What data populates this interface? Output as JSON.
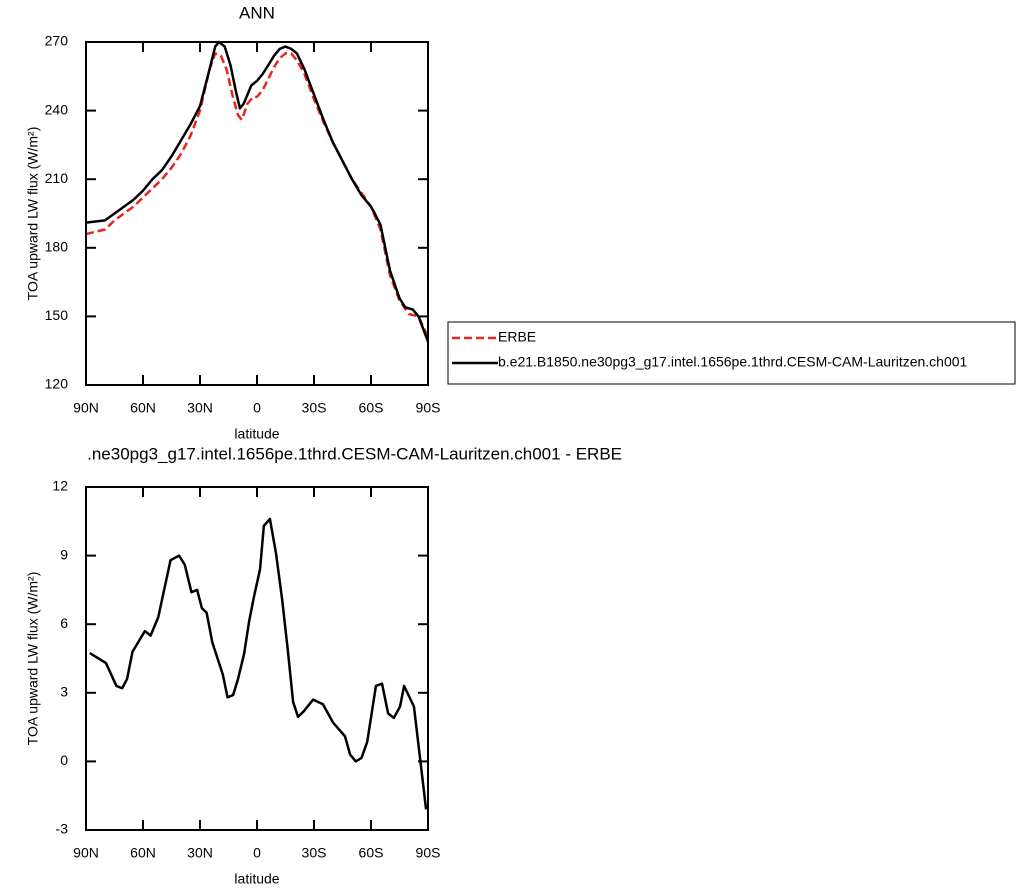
{
  "chart_data": [
    {
      "type": "line",
      "title": "ANN",
      "xlabel": "latitude",
      "ylabel": "TOA upward LW flux (W/m²)",
      "xlim": [
        90,
        -90
      ],
      "ylim": [
        120,
        270
      ],
      "xticks": [
        {
          "value": 90,
          "label": "90N"
        },
        {
          "value": 60,
          "label": "60N"
        },
        {
          "value": 30,
          "label": "30N"
        },
        0,
        {
          "value": -30,
          "label": "30S"
        },
        {
          "value": -60,
          "label": "60S"
        },
        {
          "value": -90,
          "label": "90S"
        }
      ],
      "yticks": [
        120,
        150,
        180,
        210,
        240,
        270
      ],
      "legend": "right",
      "series": [
        {
          "name": "ERBE",
          "color": "#e8261f",
          "dash": "dashed",
          "x": [
            90,
            85,
            80,
            75,
            70,
            65,
            60,
            55,
            50,
            45,
            40,
            35,
            30,
            25,
            22,
            19,
            16,
            13,
            10,
            8,
            5,
            2,
            0,
            -3,
            -6,
            -9,
            -12,
            -15,
            -18,
            -21,
            -25,
            -30,
            -35,
            -40,
            -45,
            -50,
            -55,
            -60,
            -65,
            -70,
            -75,
            -80,
            -85,
            -90
          ],
          "values": [
            186,
            187,
            188,
            192,
            195,
            198,
            202,
            206,
            210,
            215,
            221,
            229,
            240,
            258,
            265,
            264,
            258,
            247,
            238,
            236,
            243,
            246,
            246,
            249,
            254,
            259,
            263,
            265,
            265,
            262,
            256,
            245,
            235,
            226,
            218,
            210,
            204,
            198,
            188,
            168,
            157,
            151,
            150,
            141
          ]
        },
        {
          "name": "b.e21.B1850.ne30pg3_g17.intel.1656pe.1thrd.CESM-CAM-Lauritzen.ch001",
          "color": "#000000",
          "dash": "solid",
          "x": [
            90,
            85,
            80,
            75,
            70,
            65,
            60,
            55,
            50,
            45,
            40,
            35,
            30,
            25,
            22,
            20,
            17,
            14,
            11,
            9,
            7,
            5,
            3,
            0,
            -3,
            -6,
            -9,
            -12,
            -15,
            -18,
            -21,
            -25,
            -30,
            -35,
            -40,
            -45,
            -50,
            -55,
            -60,
            -62,
            -65,
            -70,
            -75,
            -78,
            -82,
            -85,
            -90
          ],
          "values": [
            191,
            191.5,
            192,
            195,
            198,
            201,
            205,
            210,
            214,
            220,
            227,
            234,
            242,
            258,
            268,
            270,
            268,
            260,
            248,
            241,
            243,
            247,
            251,
            253,
            256,
            260,
            264,
            267,
            268,
            267,
            265,
            258,
            247,
            236,
            226,
            218,
            210,
            203,
            198,
            195,
            190,
            170,
            158,
            154,
            153,
            150,
            139
          ]
        }
      ]
    },
    {
      "type": "line",
      "title": ".ne30pg3_g17.intel.1656pe.1thrd.CESM-CAM-Lauritzen.ch001 - ERBE",
      "xlabel": "latitude",
      "ylabel": "TOA upward LW flux (W/m²)",
      "xlim": [
        90,
        -90
      ],
      "ylim": [
        -3,
        12
      ],
      "xticks": [
        {
          "value": 90,
          "label": "90N"
        },
        {
          "value": 60,
          "label": "60N"
        },
        {
          "value": 30,
          "label": "30N"
        },
        0,
        {
          "value": -30,
          "label": "30S"
        },
        {
          "value": -60,
          "label": "60S"
        },
        {
          "value": -90,
          "label": "90S"
        }
      ],
      "yticks": [
        -3,
        0,
        3,
        6,
        9,
        12
      ],
      "color": "#000000",
      "x": [
        88,
        79.5,
        74,
        71,
        68.4,
        65.5,
        59,
        56,
        52,
        45.5,
        41,
        38,
        34.5,
        31.5,
        29,
        26.5,
        23.5,
        18,
        15.5,
        12.6,
        10,
        6.8,
        4.2,
        1.6,
        -1.6,
        -3.6,
        -6.8,
        -10,
        -13.2,
        -16.3,
        -19,
        -21.6,
        -24.7,
        -29.5,
        -34.7,
        -40,
        -46.3,
        -49,
        -52,
        -55,
        -58,
        -62.6,
        -65.8,
        -69,
        -72,
        -75.3,
        -77.4,
        -82.6,
        -89
      ],
      "values": [
        4.74,
        4.3,
        3.3,
        3.2,
        3.6,
        4.8,
        5.7,
        5.5,
        6.3,
        8.8,
        9.0,
        8.6,
        7.4,
        7.5,
        6.7,
        6.5,
        5.2,
        3.8,
        2.8,
        2.9,
        3.6,
        4.7,
        6.1,
        7.2,
        8.4,
        10.3,
        10.6,
        9.1,
        7.1,
        4.8,
        2.6,
        1.95,
        2.2,
        2.7,
        2.5,
        1.7,
        1.1,
        0.3,
        0.0,
        0.15,
        0.85,
        3.3,
        3.4,
        2.1,
        1.9,
        2.4,
        3.3,
        2.4,
        -2.1
      ]
    }
  ]
}
